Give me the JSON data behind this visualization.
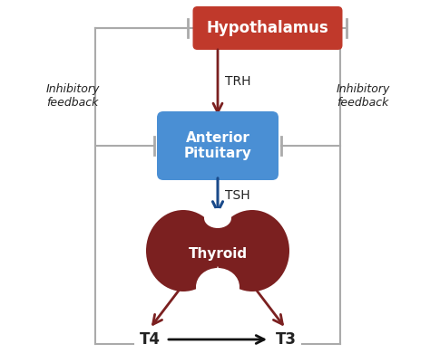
{
  "bg_color": "#ffffff",
  "hypothalamus_color": "#c0392b",
  "pituitary_color": "#4a8fd4",
  "thyroid_color": "#7b2020",
  "arrow_dark_red": "#7b2020",
  "arrow_blue": "#1a4a8a",
  "arrow_black": "#111111",
  "line_gray": "#aaaaaa",
  "text_dark": "#222222",
  "hypothalamus_label": "Hypothalamus",
  "pituitary_label": "Anterior\nPituitary",
  "thyroid_label": "Thyroid",
  "trh_label": "TRH",
  "tsh_label": "TSH",
  "t4_label": "T4",
  "t3_label": "T3",
  "inhibitory_left": "Inhibitory\nfeedback",
  "inhibitory_right": "Inhibitory\nfeedback",
  "figsize": [
    4.74,
    4.01
  ],
  "dpi": 100
}
